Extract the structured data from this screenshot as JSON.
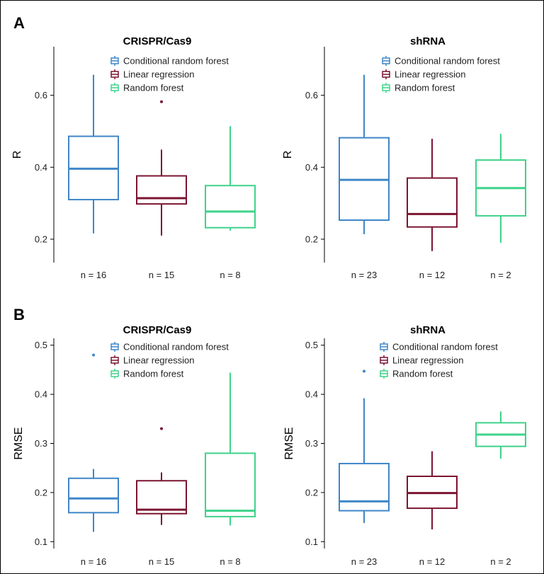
{
  "panel_letters": [
    "A",
    "B"
  ],
  "colors": {
    "conditional_random_forest": "#3f86c8",
    "linear_regression": "#7b1530",
    "random_forest": "#3ed38a",
    "axis": "#000000"
  },
  "legend": [
    "Conditional random forest",
    "Linear regression",
    "Random forest"
  ],
  "chart_data": [
    {
      "type": "box",
      "panel": "A",
      "title": "CRISPR/Cas9",
      "ylabel": "R",
      "ylim": [
        0.135,
        0.735
      ],
      "yticks": [
        0.2,
        0.4,
        0.6
      ],
      "ytick_labels": [
        "0.2",
        "0.4",
        "0.6"
      ],
      "categories": [
        "n = 16",
        "n = 15",
        "n = 8"
      ],
      "boxes": [
        {
          "series": "Conditional random forest",
          "whisker_low": 0.216,
          "q1": 0.31,
          "median": 0.396,
          "q3": 0.486,
          "whisker_high": 0.657,
          "outliers": []
        },
        {
          "series": "Linear regression",
          "whisker_low": 0.21,
          "q1": 0.298,
          "median": 0.314,
          "q3": 0.376,
          "whisker_high": 0.449,
          "outliers": [
            0.582
          ]
        },
        {
          "series": "Random forest",
          "whisker_low": 0.224,
          "q1": 0.232,
          "median": 0.277,
          "q3": 0.349,
          "whisker_high": 0.514,
          "outliers": []
        }
      ]
    },
    {
      "type": "box",
      "panel": "A",
      "title": "shRNA",
      "ylabel": "R",
      "ylim": [
        0.135,
        0.735
      ],
      "yticks": [
        0.2,
        0.4,
        0.6
      ],
      "ytick_labels": [
        "0.2",
        "0.4",
        "0.6"
      ],
      "categories": [
        "n = 23",
        "n = 12",
        "n = 2"
      ],
      "boxes": [
        {
          "series": "Conditional random forest",
          "whisker_low": 0.214,
          "q1": 0.253,
          "median": 0.365,
          "q3": 0.482,
          "whisker_high": 0.657,
          "outliers": []
        },
        {
          "series": "Linear regression",
          "whisker_low": 0.167,
          "q1": 0.234,
          "median": 0.27,
          "q3": 0.37,
          "whisker_high": 0.479,
          "outliers": []
        },
        {
          "series": "Random forest",
          "whisker_low": 0.19,
          "q1": 0.265,
          "median": 0.342,
          "q3": 0.42,
          "whisker_high": 0.493,
          "outliers": []
        }
      ]
    },
    {
      "type": "box",
      "panel": "B",
      "title": "CRISPR/Cas9",
      "ylabel": "RMSE",
      "ylim": [
        0.086,
        0.514
      ],
      "yticks": [
        0.1,
        0.2,
        0.3,
        0.4,
        0.5
      ],
      "ytick_labels": [
        "0.1",
        "0.2",
        "0.3",
        "0.4",
        "0.5"
      ],
      "categories": [
        "n = 16",
        "n = 15",
        "n = 8"
      ],
      "boxes": [
        {
          "series": "Conditional random forest",
          "whisker_low": 0.12,
          "q1": 0.159,
          "median": 0.188,
          "q3": 0.229,
          "whisker_high": 0.248,
          "outliers": [
            0.48
          ]
        },
        {
          "series": "Linear regression",
          "whisker_low": 0.134,
          "q1": 0.157,
          "median": 0.165,
          "q3": 0.224,
          "whisker_high": 0.241,
          "outliers": [
            0.33
          ]
        },
        {
          "series": "Random forest",
          "whisker_low": 0.133,
          "q1": 0.151,
          "median": 0.163,
          "q3": 0.28,
          "whisker_high": 0.444,
          "outliers": []
        }
      ]
    },
    {
      "type": "box",
      "panel": "B",
      "title": "shRNA",
      "ylabel": "RMSE",
      "ylim": [
        0.086,
        0.514
      ],
      "yticks": [
        0.1,
        0.2,
        0.3,
        0.4,
        0.5
      ],
      "ytick_labels": [
        "0.1",
        "0.2",
        "0.3",
        "0.4",
        "0.5"
      ],
      "categories": [
        "n = 23",
        "n = 12",
        "n = 2"
      ],
      "boxes": [
        {
          "series": "Conditional random forest",
          "whisker_low": 0.138,
          "q1": 0.163,
          "median": 0.182,
          "q3": 0.259,
          "whisker_high": 0.392,
          "outliers": [
            0.447
          ]
        },
        {
          "series": "Linear regression",
          "whisker_low": 0.125,
          "q1": 0.168,
          "median": 0.199,
          "q3": 0.233,
          "whisker_high": 0.284,
          "outliers": []
        },
        {
          "series": "Random forest",
          "whisker_low": 0.269,
          "q1": 0.294,
          "median": 0.318,
          "q3": 0.342,
          "whisker_high": 0.365,
          "outliers": []
        }
      ]
    }
  ]
}
